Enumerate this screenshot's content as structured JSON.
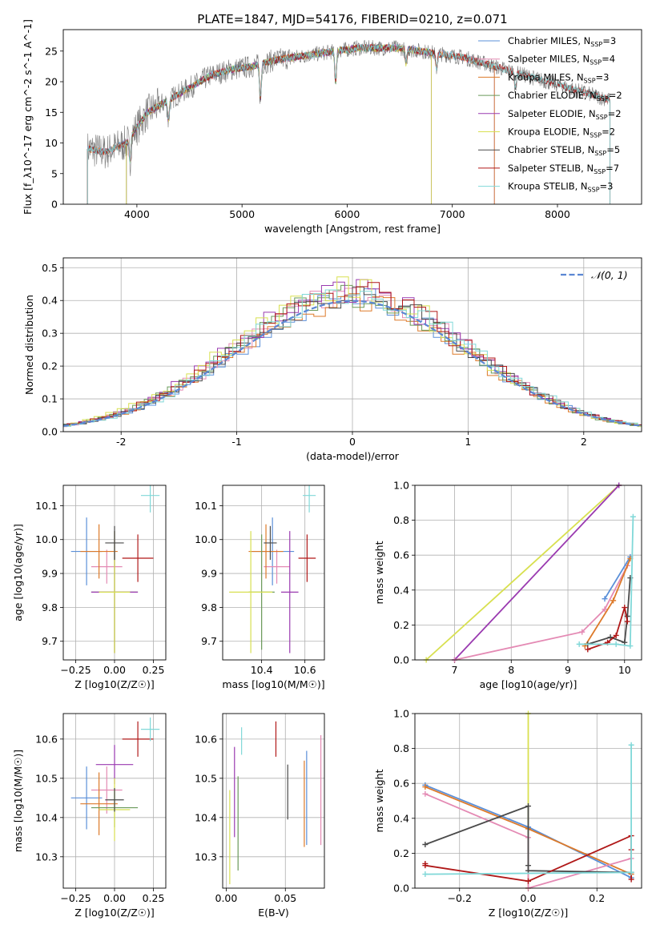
{
  "figure": {
    "title": "PLATE=1847, MJD=54176, FIBERID=0210, z=0.071"
  },
  "colors": {
    "Chabrier MILES": "#5a8fd8",
    "Salpeter MILES": "#e48ab4",
    "Kroupa MILES": "#dd7a2a",
    "Chabrier ELODIE": "#6a9a5a",
    "Salpeter ELODIE": "#9a3ab0",
    "Kroupa ELODIE": "#d8e050",
    "Chabrier STELIB": "#4a4a4a",
    "Salpeter STELIB": "#b01818",
    "Kroupa STELIB": "#80d8d8",
    "normal": "#5b87d3"
  },
  "chart_data": [
    {
      "id": "spectrum",
      "type": "line",
      "title": "PLATE=1847, MJD=54176, FIBERID=0210, z=0.071",
      "xlabel": "wavelength [Angstrom, rest frame]",
      "ylabel": "Flux [f_λ10^-17 erg cm^-2 s^-1 A^-1]",
      "xlim": [
        3300,
        8800
      ],
      "ylim": [
        0,
        28.5
      ],
      "xticks": [
        4000,
        5000,
        6000,
        7000,
        8000
      ],
      "yticks": [
        0,
        5,
        10,
        15,
        20,
        25
      ],
      "grid": false,
      "legend_position": "top-right",
      "legend": [
        {
          "name": "Chabrier MILES",
          "nssp": "3"
        },
        {
          "name": "Salpeter MILES",
          "nssp": "4"
        },
        {
          "name": "Kroupa MILES",
          "nssp": "3"
        },
        {
          "name": "Chabrier ELODIE",
          "nssp": "2"
        },
        {
          "name": "Salpeter ELODIE",
          "nssp": "2"
        },
        {
          "name": "Kroupa ELODIE",
          "nssp": "2"
        },
        {
          "name": "Chabrier STELIB",
          "nssp": "5"
        },
        {
          "name": "Salpeter STELIB",
          "nssp": "7"
        },
        {
          "name": "Kroupa STELIB",
          "nssp": "3"
        }
      ],
      "continuum": {
        "x": [
          3550,
          3700,
          3900,
          4100,
          4300,
          4500,
          4700,
          4900,
          5100,
          5300,
          5500,
          5700,
          5900,
          6100,
          6300,
          6500,
          6700,
          6900,
          7100,
          7300,
          7500,
          7700,
          7900,
          8100,
          8300,
          8500
        ],
        "y": [
          9.0,
          8.5,
          10.0,
          15.0,
          17.0,
          19.0,
          21.0,
          22.0,
          22.5,
          23.5,
          24.0,
          24.5,
          25.0,
          25.5,
          25.5,
          25.5,
          25.0,
          24.5,
          24.0,
          23.0,
          22.0,
          21.0,
          20.0,
          19.0,
          18.0,
          17.0
        ]
      },
      "model_ranges": [
        {
          "name": "Chabrier MILES",
          "x_start": 3530,
          "x_end": 7400
        },
        {
          "name": "Salpeter MILES",
          "x_start": 3530,
          "x_end": 7400
        },
        {
          "name": "Kroupa MILES",
          "x_start": 3530,
          "x_end": 7400
        },
        {
          "name": "Chabrier ELODIE",
          "x_start": 3900,
          "x_end": 6800
        },
        {
          "name": "Salpeter ELODIE",
          "x_start": 3900,
          "x_end": 6800
        },
        {
          "name": "Kroupa ELODIE",
          "x_start": 3900,
          "x_end": 6800
        },
        {
          "name": "Chabrier STELIB",
          "x_start": 3530,
          "x_end": 8500
        },
        {
          "name": "Salpeter STELIB",
          "x_start": 3530,
          "x_end": 8500
        },
        {
          "name": "Kroupa STELIB",
          "x_start": 3530,
          "x_end": 8500
        }
      ],
      "absorption_dips": [
        {
          "x": 3934,
          "depth": 0.35
        },
        {
          "x": 4300,
          "depth": 0.2
        },
        {
          "x": 5175,
          "depth": 0.25
        },
        {
          "x": 5890,
          "depth": 0.2
        },
        {
          "x": 6560,
          "depth": 0.1
        },
        {
          "x": 6850,
          "depth": 0.1
        },
        {
          "x": 7600,
          "depth": 0.12
        }
      ]
    },
    {
      "id": "residuals",
      "type": "step",
      "xlabel": "(data-model)/error",
      "ylabel": "Normed distribution",
      "xlim": [
        -2.5,
        2.5
      ],
      "ylim": [
        0,
        0.53
      ],
      "xticks": [
        -2,
        -1,
        0,
        1,
        2
      ],
      "yticks": [
        0.0,
        0.1,
        0.2,
        0.3,
        0.4,
        0.5
      ],
      "grid": true,
      "legend_position": "top-right",
      "legend": [
        {
          "name": "N(0,1)",
          "style": "dashed"
        }
      ],
      "bin_width": 0.1,
      "series_offsets": [
        {
          "name": "Chabrier MILES",
          "x_shift": 0.0,
          "amp": 1.02
        },
        {
          "name": "Salpeter MILES",
          "x_shift": 0.06,
          "amp": 1.06
        },
        {
          "name": "Kroupa MILES",
          "x_shift": -0.04,
          "amp": 1.0
        },
        {
          "name": "Chabrier ELODIE",
          "x_shift": -0.1,
          "amp": 1.04
        },
        {
          "name": "Salpeter ELODIE",
          "x_shift": -0.08,
          "amp": 1.08
        },
        {
          "name": "Kroupa ELODIE",
          "x_shift": -0.12,
          "amp": 1.1
        },
        {
          "name": "Chabrier STELIB",
          "x_shift": 0.03,
          "amp": 1.05
        },
        {
          "name": "Salpeter STELIB",
          "x_shift": -0.02,
          "amp": 1.07
        },
        {
          "name": "Kroupa STELIB",
          "x_shift": 0.1,
          "amp": 1.05
        }
      ]
    },
    {
      "id": "age_vs_Z",
      "type": "errorbar",
      "xlabel": "Z [log10(Z/Z☉)]",
      "ylabel": "age  [log10(age/yr)]",
      "xlim": [
        -0.33,
        0.33
      ],
      "ylim": [
        9.645,
        10.16
      ],
      "xticks": [
        -0.25,
        0.0,
        0.25
      ],
      "xtick_labels": [
        "−0.25",
        "0.00",
        "0.25"
      ],
      "yticks": [
        9.7,
        9.8,
        9.9,
        10.0,
        10.1
      ],
      "grid": true,
      "points": [
        {
          "name": "Chabrier MILES",
          "x": -0.18,
          "y": 9.965,
          "xerr": 0.1,
          "yerr": 0.1
        },
        {
          "name": "Salpeter MILES",
          "x": -0.05,
          "y": 9.92,
          "xerr": 0.1,
          "yerr": 0.05
        },
        {
          "name": "Kroupa MILES",
          "x": -0.1,
          "y": 9.965,
          "xerr": 0.12,
          "yerr": 0.08
        },
        {
          "name": "Chabrier ELODIE",
          "x": 0.0,
          "y": 9.845,
          "xerr": 0.15,
          "yerr": 0.18
        },
        {
          "name": "Salpeter ELODIE",
          "x": 0.0,
          "y": 9.845,
          "xerr": 0.15,
          "yerr": 0.18
        },
        {
          "name": "Kroupa ELODIE",
          "x": 0.0,
          "y": 9.845,
          "xerr": 0.1,
          "yerr": 0.18
        },
        {
          "name": "Chabrier STELIB",
          "x": 0.0,
          "y": 9.99,
          "xerr": 0.06,
          "yerr": 0.05
        },
        {
          "name": "Salpeter STELIB",
          "x": 0.15,
          "y": 9.945,
          "xerr": 0.1,
          "yerr": 0.07
        },
        {
          "name": "Kroupa STELIB",
          "x": 0.23,
          "y": 10.13,
          "xerr": 0.06,
          "yerr": 0.05
        }
      ]
    },
    {
      "id": "age_vs_mass",
      "type": "errorbar",
      "xlabel": "mass [log10(M/M☉)]",
      "ylabel": "",
      "xlim": [
        10.22,
        10.69
      ],
      "ylim": [
        9.645,
        10.16
      ],
      "xticks": [
        10.4,
        10.6
      ],
      "xtick_labels": [
        "10.4",
        "10.6"
      ],
      "yticks": [
        9.7,
        9.8,
        9.9,
        10.0,
        10.1
      ],
      "grid": true,
      "points": [
        {
          "name": "Chabrier MILES",
          "x": 10.45,
          "y": 9.965,
          "xerr": 0.1,
          "yerr": 0.1
        },
        {
          "name": "Salpeter MILES",
          "x": 10.47,
          "y": 9.92,
          "xerr": 0.06,
          "yerr": 0.05
        },
        {
          "name": "Kroupa MILES",
          "x": 10.42,
          "y": 9.965,
          "xerr": 0.08,
          "yerr": 0.08
        },
        {
          "name": "Chabrier ELODIE",
          "x": 10.4,
          "y": 9.845,
          "xerr": 0.06,
          "yerr": 0.17
        },
        {
          "name": "Salpeter ELODIE",
          "x": 10.53,
          "y": 9.845,
          "xerr": 0.04,
          "yerr": 0.18
        },
        {
          "name": "Kroupa ELODIE",
          "x": 10.35,
          "y": 9.845,
          "xerr": 0.1,
          "yerr": 0.18
        },
        {
          "name": "Chabrier STELIB",
          "x": 10.44,
          "y": 9.99,
          "xerr": 0.03,
          "yerr": 0.05
        },
        {
          "name": "Salpeter STELIB",
          "x": 10.61,
          "y": 9.945,
          "xerr": 0.04,
          "yerr": 0.07
        },
        {
          "name": "Kroupa STELIB",
          "x": 10.62,
          "y": 10.13,
          "xerr": 0.03,
          "yerr": 0.05
        }
      ]
    },
    {
      "id": "weight_vs_age",
      "type": "line",
      "xlabel": "age  [log10(age/yr)]",
      "ylabel": "mass weight",
      "xlim": [
        6.3,
        10.3
      ],
      "ylim": [
        0,
        1.0
      ],
      "xticks": [
        7,
        8,
        9,
        10
      ],
      "yticks": [
        0.0,
        0.2,
        0.4,
        0.6,
        0.8,
        1.0
      ],
      "grid": true,
      "series": [
        {
          "name": "Kroupa ELODIE",
          "x": [
            6.5,
            9.9
          ],
          "y": [
            0.0,
            1.0
          ]
        },
        {
          "name": "Salpeter ELODIE",
          "x": [
            7.0,
            9.9
          ],
          "y": [
            0.0,
            1.0
          ]
        },
        {
          "name": "Salpeter MILES",
          "x": [
            7.0,
            9.25,
            9.65,
            10.05
          ],
          "y": [
            0.0,
            0.16,
            0.29,
            0.54
          ]
        },
        {
          "name": "Chabrier MILES",
          "x": [
            9.65,
            10.1
          ],
          "y": [
            0.35,
            0.59
          ]
        },
        {
          "name": "Kroupa MILES",
          "x": [
            9.3,
            9.8,
            10.1
          ],
          "y": [
            0.08,
            0.34,
            0.58
          ]
        },
        {
          "name": "Chabrier STELIB",
          "x": [
            9.35,
            9.75,
            10.0,
            10.05,
            10.1
          ],
          "y": [
            0.09,
            0.13,
            0.1,
            0.25,
            0.47
          ]
        },
        {
          "name": "Salpeter STELIB",
          "x": [
            9.35,
            9.7,
            9.85,
            10.0,
            10.05
          ],
          "y": [
            0.06,
            0.1,
            0.14,
            0.3,
            0.22
          ]
        },
        {
          "name": "Kroupa STELIB",
          "x": [
            9.2,
            9.85,
            10.1,
            10.15
          ],
          "y": [
            0.09,
            0.09,
            0.08,
            0.82
          ]
        }
      ]
    },
    {
      "id": "mass_vs_Z",
      "type": "errorbar",
      "xlabel": "Z [log10(Z/Z☉)]",
      "ylabel": "mass [log10(M/M☉)]",
      "xlim": [
        -0.33,
        0.33
      ],
      "ylim": [
        10.22,
        10.665
      ],
      "xticks": [
        -0.25,
        0.0,
        0.25
      ],
      "xtick_labels": [
        "−0.25",
        "0.00",
        "0.25"
      ],
      "yticks": [
        10.3,
        10.4,
        10.5,
        10.6
      ],
      "grid": true,
      "points": [
        {
          "name": "Chabrier MILES",
          "x": -0.18,
          "y": 10.45,
          "xerr": 0.1,
          "yerr": 0.08
        },
        {
          "name": "Salpeter MILES",
          "x": -0.05,
          "y": 10.47,
          "xerr": 0.1,
          "yerr": 0.06
        },
        {
          "name": "Kroupa MILES",
          "x": -0.1,
          "y": 10.435,
          "xerr": 0.12,
          "yerr": 0.08
        },
        {
          "name": "Chabrier ELODIE",
          "x": 0.0,
          "y": 10.425,
          "xerr": 0.15,
          "yerr": 0.05
        },
        {
          "name": "Salpeter ELODIE",
          "x": 0.0,
          "y": 10.535,
          "xerr": 0.12,
          "yerr": 0.05
        },
        {
          "name": "Kroupa ELODIE",
          "x": 0.0,
          "y": 10.42,
          "xerr": 0.1,
          "yerr": 0.08
        },
        {
          "name": "Chabrier STELIB",
          "x": 0.0,
          "y": 10.445,
          "xerr": 0.06,
          "yerr": 0.03
        },
        {
          "name": "Salpeter STELIB",
          "x": 0.15,
          "y": 10.6,
          "xerr": 0.1,
          "yerr": 0.045
        },
        {
          "name": "Kroupa STELIB",
          "x": 0.23,
          "y": 10.625,
          "xerr": 0.06,
          "yerr": 0.03
        }
      ]
    },
    {
      "id": "mass_vs_ebv",
      "type": "errorbar",
      "xlabel": "E(B-V)",
      "ylabel": "",
      "xlim": [
        -0.003,
        0.083
      ],
      "ylim": [
        10.22,
        10.665
      ],
      "xticks": [
        0.0,
        0.05
      ],
      "xtick_labels": [
        "0.00",
        "0.05"
      ],
      "yticks": [
        10.3,
        10.4,
        10.5,
        10.6
      ],
      "grid": true,
      "points": [
        {
          "name": "Chabrier MILES",
          "x": 0.068,
          "y": 10.45,
          "xerr": 0,
          "yerr": 0.12
        },
        {
          "name": "Salpeter MILES",
          "x": 0.08,
          "y": 10.47,
          "xerr": 0,
          "yerr": 0.14
        },
        {
          "name": "Kroupa MILES",
          "x": 0.066,
          "y": 10.435,
          "xerr": 0,
          "yerr": 0.11
        },
        {
          "name": "Chabrier ELODIE",
          "x": 0.01,
          "y": 10.385,
          "xerr": 0,
          "yerr": 0.12
        },
        {
          "name": "Salpeter ELODIE",
          "x": 0.007,
          "y": 10.465,
          "xerr": 0,
          "yerr": 0.115
        },
        {
          "name": "Kroupa ELODIE",
          "x": 0.003,
          "y": 10.35,
          "xerr": 0,
          "yerr": 0.12
        },
        {
          "name": "Chabrier STELIB",
          "x": 0.052,
          "y": 10.465,
          "xerr": 0,
          "yerr": 0.07
        },
        {
          "name": "Salpeter STELIB",
          "x": 0.042,
          "y": 10.6,
          "xerr": 0,
          "yerr": 0.045
        },
        {
          "name": "Kroupa STELIB",
          "x": 0.013,
          "y": 10.595,
          "xerr": 0,
          "yerr": 0.035
        }
      ]
    },
    {
      "id": "weight_vs_Z",
      "type": "line",
      "xlabel": "Z [log10(Z/Z☉)]",
      "ylabel": "mass weight",
      "xlim": [
        -0.33,
        0.33
      ],
      "ylim": [
        0,
        1.0
      ],
      "xticks": [
        -0.2,
        0.0,
        0.2
      ],
      "xtick_labels": [
        "−0.2",
        "0.0",
        "0.2"
      ],
      "yticks": [
        0.0,
        0.2,
        0.4,
        0.6,
        0.8,
        1.0
      ],
      "grid": true,
      "series": [
        {
          "name": "Kroupa ELODIE",
          "x": [
            0.0,
            0.0
          ],
          "y": [
            0.0,
            1.0
          ]
        },
        {
          "name": "Chabrier MILES",
          "x": [
            -0.3,
            0.0,
            0.3
          ],
          "y": [
            0.59,
            0.35,
            0.06
          ]
        },
        {
          "name": "Kroupa MILES",
          "x": [
            -0.3,
            0.0,
            0.3
          ],
          "y": [
            0.58,
            0.34,
            0.08
          ]
        },
        {
          "name": "Salpeter MILES",
          "x": [
            -0.3,
            0.0,
            0.0,
            0.3
          ],
          "y": [
            0.54,
            0.29,
            0.0,
            0.17
          ]
        },
        {
          "name": "Chabrier STELIB",
          "x": [
            -0.3,
            0.0,
            0.0,
            0.0,
            0.3
          ],
          "y": [
            0.25,
            0.47,
            0.13,
            0.1,
            0.09
          ]
        },
        {
          "name": "Salpeter STELIB",
          "x": [
            -0.3,
            -0.3,
            0.0,
            0.3,
            0.3,
            0.3
          ],
          "y": [
            0.14,
            0.13,
            0.04,
            0.3,
            0.22,
            0.05
          ]
        },
        {
          "name": "Kroupa STELIB",
          "x": [
            -0.3,
            0.3,
            0.3
          ],
          "y": [
            0.08,
            0.09,
            0.82
          ]
        }
      ]
    }
  ]
}
